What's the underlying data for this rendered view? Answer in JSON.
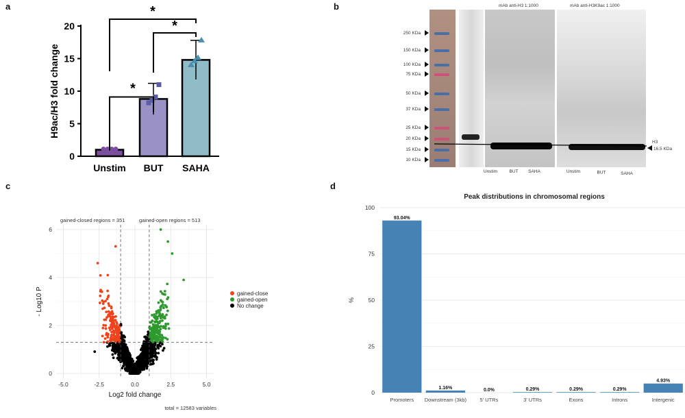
{
  "panel_labels": {
    "a": "a",
    "b": "b",
    "c": "c",
    "d": "d"
  },
  "chart_data": [
    {
      "panel": "a",
      "type": "bar",
      "categories": [
        "Unstim",
        "BUT",
        "SAHA"
      ],
      "values": [
        1.0,
        8.8,
        14.8
      ],
      "errors": [
        0.1,
        2.4,
        3.0
      ],
      "points": [
        [
          1.0,
          1.0,
          1.0,
          1.0
        ],
        [
          8.2,
          8.6,
          9.1,
          11.0
        ],
        [
          14.0,
          14.6,
          15.1,
          17.8
        ]
      ],
      "ylabel": "H9ac/H3 fold change",
      "ylim": [
        0,
        20
      ],
      "yticks": [
        0,
        5,
        10,
        15,
        20
      ],
      "bar_colors": [
        "#7b4f9e",
        "#9a92c6",
        "#8fbcc6"
      ],
      "point_colors": [
        "#7b4f9e",
        "#5b5ea6",
        "#4a8fb0"
      ],
      "significance": [
        {
          "from": "Unstim",
          "to": "BUT",
          "label": "*"
        },
        {
          "from": "Unstim",
          "to": "SAHA",
          "label": "*"
        },
        {
          "from": "BUT",
          "to": "SAHA",
          "label": "*"
        }
      ]
    },
    {
      "panel": "c",
      "type": "scatter",
      "xlabel": "Log2 fold change",
      "ylabel": "- Log10 P",
      "xlim": [
        -5.5,
        5.5
      ],
      "ylim": [
        -0.2,
        6.2
      ],
      "xticks": [
        -5.0,
        -2.5,
        0.0,
        2.5,
        5.0
      ],
      "yticks": [
        0,
        2,
        4,
        6
      ],
      "fc_threshold": 1,
      "p_threshold": 1.3,
      "annotation_left": "gained-closed regions = 351",
      "annotation_right": "gained-open regions = 513",
      "caption": "total = 12583 variables",
      "legend": [
        {
          "label": "gained-close",
          "color": "#f0431b"
        },
        {
          "label": "gained-open",
          "color": "#2e9a2e"
        },
        {
          "label": "No change",
          "color": "#000000"
        }
      ]
    },
    {
      "panel": "d",
      "type": "bar",
      "title": "Peak distributions in chromosomal regions",
      "categories": [
        "Promoters",
        "Downstream (3kb)",
        "5' UTRs",
        "3' UTRs",
        "Exons",
        "Introns",
        "Intergenic"
      ],
      "values": [
        93.04,
        1.16,
        0.0,
        0.29,
        0.29,
        0.29,
        4.93
      ],
      "value_labels": [
        "93.04%",
        "1.16%",
        "0.0%",
        "0.29%",
        "0.29%",
        "0.29%",
        "4.93%"
      ],
      "ylabel": "%",
      "ylim": [
        0,
        100
      ],
      "yticks": [
        0,
        25,
        50,
        75,
        100
      ],
      "color": "#4682b4"
    }
  ],
  "blot": {
    "top_label_h3": "mAb anti-H3  1:1000",
    "top_label_h3k9ac": "mAb anti-H3K9ac  1:1000",
    "markers": [
      "250 KDa",
      "150 KDa",
      "100 KDa",
      "75 KDa",
      "50 KDa",
      "37 KDa",
      "25 KDa",
      "20 KDa",
      "15 KDa",
      "10 KDa"
    ],
    "lanes_left": [
      "Unstim",
      "BUT",
      "SAHA"
    ],
    "lanes_right": [
      "Unstim",
      "BUT",
      "SAHA"
    ],
    "band_label_name": "H3",
    "band_label_size": "16.5 KDa"
  }
}
